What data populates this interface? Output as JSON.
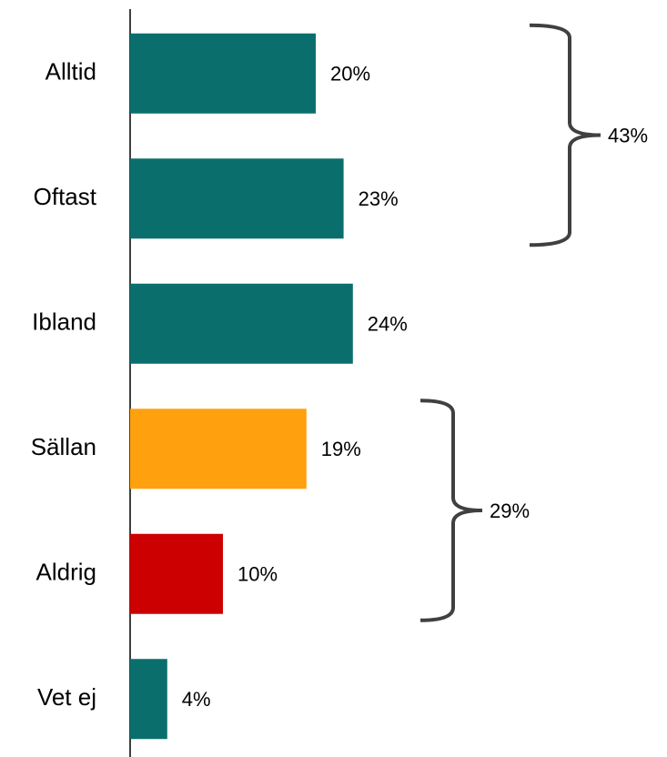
{
  "chart_data": {
    "type": "bar",
    "orientation": "horizontal",
    "categories": [
      "Alltid",
      "Oftast",
      "Ibland",
      "Sällan",
      "Aldrig",
      "Vet ej"
    ],
    "values": [
      20,
      23,
      24,
      19,
      10,
      4
    ],
    "value_labels": [
      "20%",
      "23%",
      "24%",
      "19%",
      "10%",
      "4%"
    ],
    "colors": [
      "#0a6f6c",
      "#0a6f6c",
      "#0a6f6c",
      "#ffa00f",
      "#cc0000",
      "#0a6f6c"
    ],
    "xlim": [
      0,
      50
    ],
    "annotations": [
      {
        "text": "43%",
        "span": [
          0,
          1
        ]
      },
      {
        "text": "29%",
        "span": [
          3,
          4
        ]
      }
    ]
  }
}
